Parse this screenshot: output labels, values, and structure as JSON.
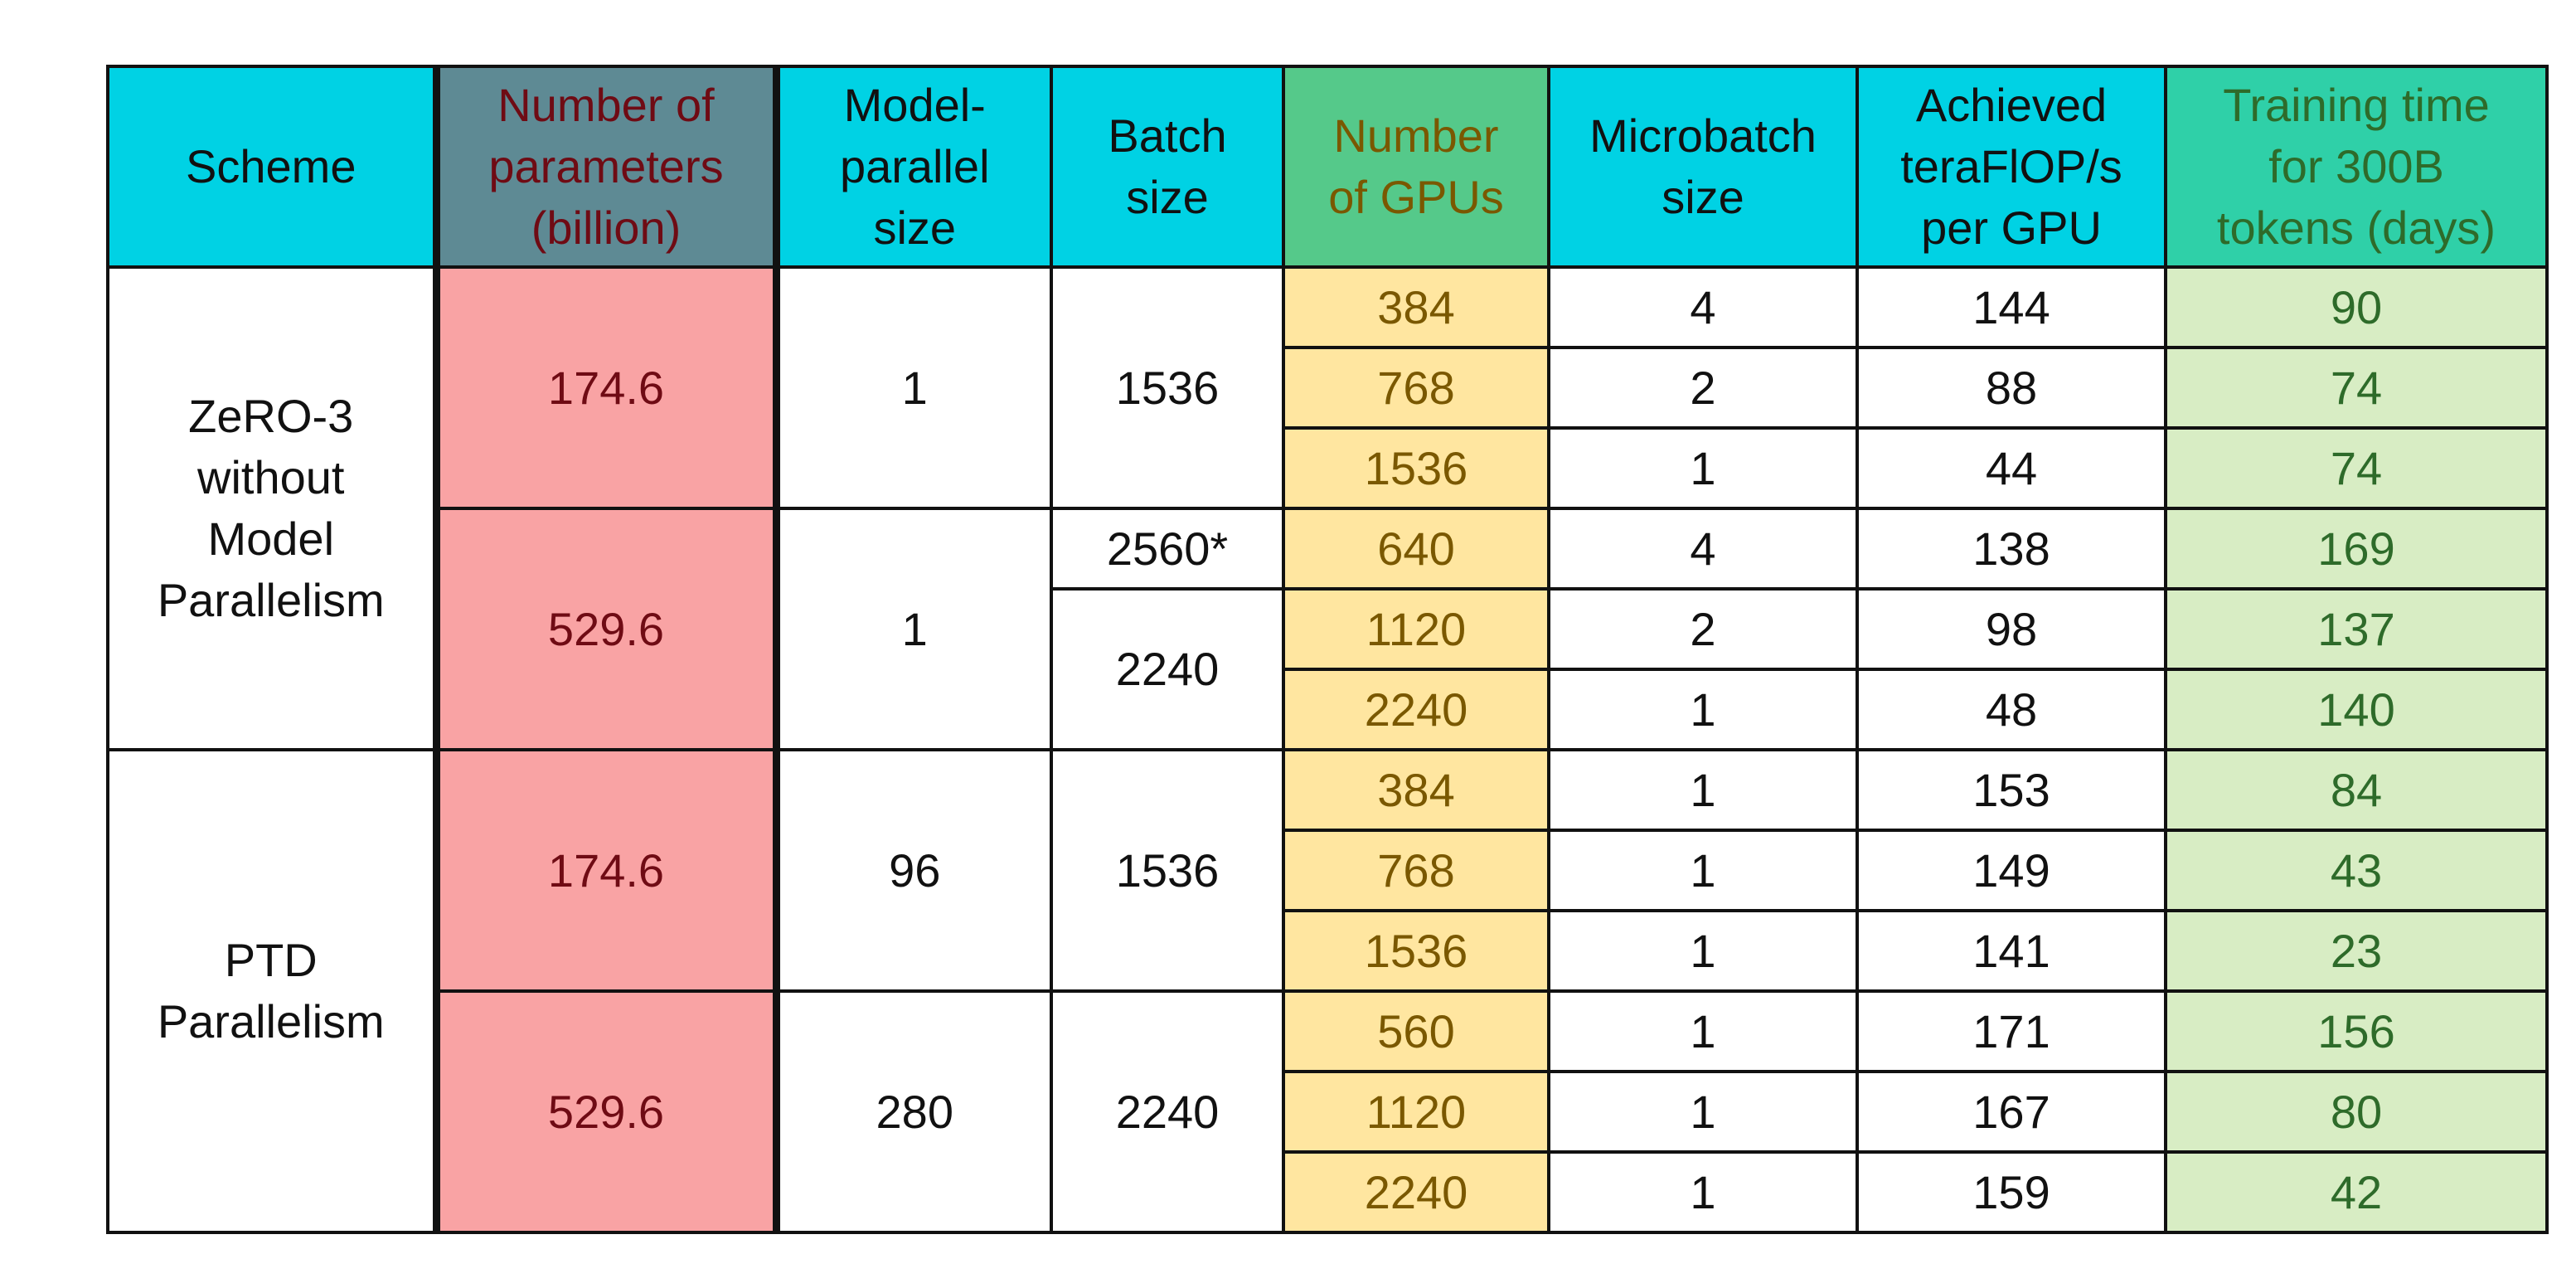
{
  "headers": {
    "scheme": "Scheme",
    "params": [
      "Number of",
      "parameters",
      "(billion)"
    ],
    "mp_size": [
      "Model-",
      "parallel",
      "size"
    ],
    "batch": [
      "Batch",
      "size"
    ],
    "gpus": [
      "Number",
      "of GPUs"
    ],
    "microbatch": [
      "Microbatch",
      "size"
    ],
    "teraflops": [
      "Achieved",
      "teraFlOP/s",
      "per GPU"
    ],
    "time": [
      "Training time",
      "for 300B",
      "tokens (days)"
    ]
  },
  "groups": [
    {
      "scheme": [
        "ZeRO-3",
        "without",
        "Model",
        "Parallelism"
      ],
      "blocks": [
        {
          "params": "174.6",
          "mp_size": "1",
          "batch": "1536"
        },
        {
          "params": "529.6",
          "mp_size": "1",
          "batch_a": "2560*",
          "batch_b": "2240"
        }
      ]
    },
    {
      "scheme": [
        "PTD",
        "Parallelism"
      ],
      "blocks": [
        {
          "params": "174.6",
          "mp_size": "96",
          "batch": "1536"
        },
        {
          "params": "529.6",
          "mp_size": "280",
          "batch": "2240"
        }
      ]
    }
  ],
  "rows": [
    {
      "gpus": "384",
      "microbatch": "4",
      "teraflops": "144",
      "time": "90"
    },
    {
      "gpus": "768",
      "microbatch": "2",
      "teraflops": "88",
      "time": "74"
    },
    {
      "gpus": "1536",
      "microbatch": "1",
      "teraflops": "44",
      "time": "74"
    },
    {
      "gpus": "640",
      "microbatch": "4",
      "teraflops": "138",
      "time": "169"
    },
    {
      "gpus": "1120",
      "microbatch": "2",
      "teraflops": "98",
      "time": "137"
    },
    {
      "gpus": "2240",
      "microbatch": "1",
      "teraflops": "48",
      "time": "140"
    },
    {
      "gpus": "384",
      "microbatch": "1",
      "teraflops": "153",
      "time": "84"
    },
    {
      "gpus": "768",
      "microbatch": "1",
      "teraflops": "149",
      "time": "43"
    },
    {
      "gpus": "1536",
      "microbatch": "1",
      "teraflops": "141",
      "time": "23"
    },
    {
      "gpus": "560",
      "microbatch": "1",
      "teraflops": "171",
      "time": "156"
    },
    {
      "gpus": "1120",
      "microbatch": "1",
      "teraflops": "167",
      "time": "80"
    },
    {
      "gpus": "2240",
      "microbatch": "1",
      "teraflops": "159",
      "time": "42"
    }
  ],
  "colors": {
    "header_bg": "#00d2e4",
    "params_header_bg": "#5e8a94",
    "params_bg": "#f9a3a4",
    "params_text": "#6f0b14",
    "gpus_header_bg": "#55c98a",
    "gpus_bg": "#ffe6a0",
    "gpus_text": "#7a5800",
    "time_header_bg": "#2fd0a8",
    "time_bg": "#d8edc4",
    "time_text": "#2e6b2a"
  }
}
